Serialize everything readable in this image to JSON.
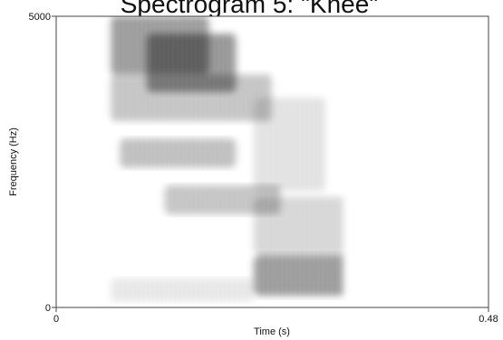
{
  "chart_data": {
    "type": "heatmap",
    "title": "Spectrogram 5: \"Knee\"",
    "xlabel": "Time (s)",
    "ylabel": "Frequency (Hz)",
    "xlim": [
      0,
      0.48
    ],
    "ylim": [
      0,
      5000
    ],
    "x_tick_labels": [
      "0",
      "0.48"
    ],
    "y_tick_labels": [
      "0",
      "5000"
    ],
    "grid": false,
    "colormap": "grayscale (white = low energy, black = high energy)",
    "energy_regions": [
      {
        "t_start": 0.06,
        "t_end": 0.17,
        "f_low": 4000,
        "f_high": 5000,
        "intensity": 0.85
      },
      {
        "t_start": 0.1,
        "t_end": 0.2,
        "f_low": 3700,
        "f_high": 4700,
        "intensity": 0.9
      },
      {
        "t_start": 0.06,
        "t_end": 0.24,
        "f_low": 3200,
        "f_high": 4000,
        "intensity": 0.5
      },
      {
        "t_start": 0.07,
        "t_end": 0.2,
        "f_low": 2400,
        "f_high": 2900,
        "intensity": 0.55
      },
      {
        "t_start": 0.12,
        "t_end": 0.25,
        "f_low": 1600,
        "f_high": 2100,
        "intensity": 0.5
      },
      {
        "t_start": 0.06,
        "t_end": 0.22,
        "f_low": 100,
        "f_high": 500,
        "intensity": 0.2
      },
      {
        "t_start": 0.22,
        "t_end": 0.32,
        "f_low": 200,
        "f_high": 900,
        "intensity": 0.85
      },
      {
        "t_start": 0.22,
        "t_end": 0.32,
        "f_low": 900,
        "f_high": 1900,
        "intensity": 0.35
      },
      {
        "t_start": 0.22,
        "t_end": 0.3,
        "f_low": 2000,
        "f_high": 3600,
        "intensity": 0.25
      }
    ]
  }
}
